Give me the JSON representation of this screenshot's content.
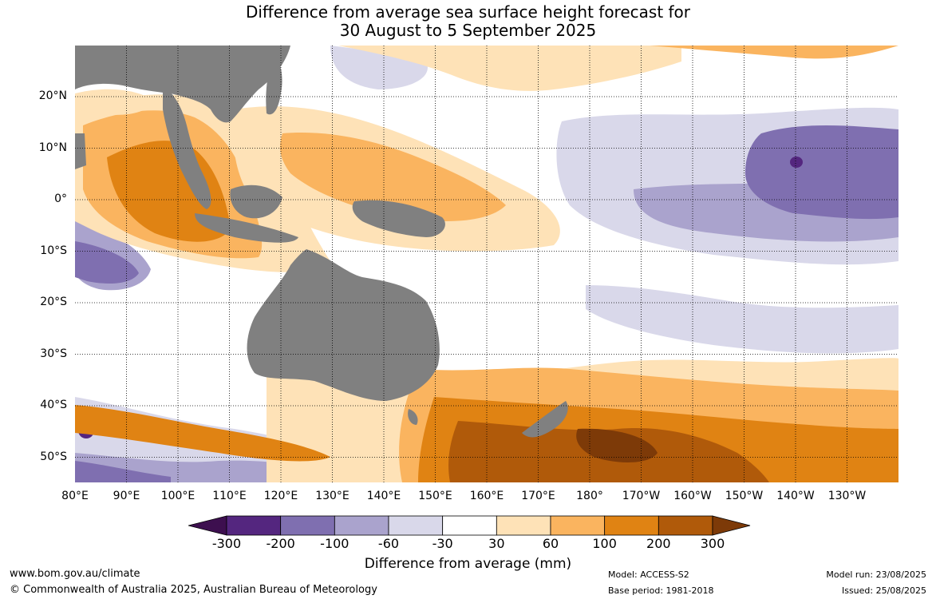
{
  "title_line1": "Difference from average sea surface height forecast for",
  "title_line2": "30 August to 5 September 2025",
  "lat_labels": [
    "20°N",
    "10°N",
    "0°",
    "10°S",
    "20°S",
    "30°S",
    "40°S",
    "50°S"
  ],
  "lon_labels": [
    "80°E",
    "90°E",
    "100°E",
    "110°E",
    "120°E",
    "130°E",
    "140°E",
    "150°E",
    "160°E",
    "170°E",
    "180°",
    "170°W",
    "160°W",
    "150°W",
    "140°W",
    "130°W"
  ],
  "colorbar": {
    "title": "Difference from average (mm)",
    "ticks": [
      "-300",
      "-200",
      "-100",
      "-60",
      "-30",
      "30",
      "60",
      "100",
      "200",
      "300"
    ],
    "colors": [
      "#3d0f4f",
      "#54267f",
      "#7f6fb0",
      "#aaa3cd",
      "#d9d8ea",
      "#ffffff",
      "#fee2b7",
      "#fab45f",
      "#e08313",
      "#b05a0a",
      "#7d3a08"
    ]
  },
  "land_color": "#808080",
  "footer": {
    "website": "www.bom.gov.au/climate",
    "copyright": "© Commonwealth of Australia 2025, Australian Bureau of Meteorology",
    "model": "Model: ACCESS-S2",
    "base_period": "Base period: 1981-2018",
    "model_run": "Model run: 23/08/2025",
    "issued": "Issued: 25/08/2025"
  }
}
